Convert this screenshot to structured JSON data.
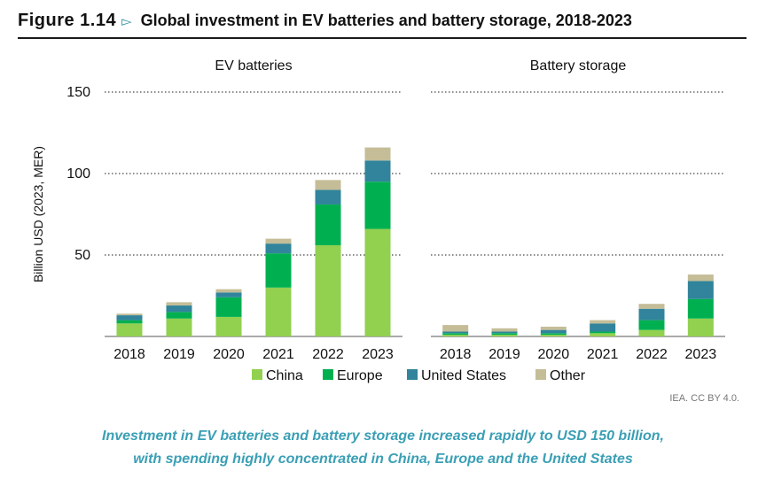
{
  "figure": {
    "number": "Figure 1.14",
    "arrow_icon": "triangle-right-icon",
    "title": "Global investment in EV batteries and battery storage, 2018-2023"
  },
  "source": "IEA. CC BY 4.0.",
  "caption": {
    "line1": "Investment in EV batteries and battery storage increased rapidly to USD 150 billion,",
    "line2": "with spending highly concentrated in China, Europe and the United States"
  },
  "colors": {
    "China": "#92d050",
    "Europe": "#00b050",
    "United States": "#31849b",
    "Other": "#c4bd97",
    "accent": "#3a9fb5"
  },
  "chart_data": {
    "type": "bar",
    "stacked": true,
    "ylabel": "Billion USD (2023, MER)",
    "ylim": [
      0,
      150
    ],
    "yticks": [
      "50",
      "100",
      "150"
    ],
    "grid": true,
    "legend_placement": "bottom",
    "legend": [
      "China",
      "Europe",
      "United States",
      "Other"
    ],
    "panels": [
      {
        "title": "EV batteries",
        "categories": [
          "2018",
          "2019",
          "2020",
          "2021",
          "2022",
          "2023"
        ],
        "series": [
          {
            "name": "China",
            "values": [
              8,
              11,
              12,
              30,
              56,
              66
            ]
          },
          {
            "name": "Europe",
            "values": [
              2,
              4,
              12,
              21,
              25,
              29
            ]
          },
          {
            "name": "United States",
            "values": [
              3,
              4,
              3,
              6,
              9,
              13
            ]
          },
          {
            "name": "Other",
            "values": [
              1,
              2,
              2,
              3,
              6,
              8
            ]
          }
        ]
      },
      {
        "title": "Battery storage",
        "categories": [
          "2018",
          "2019",
          "2020",
          "2021",
          "2022",
          "2023"
        ],
        "series": [
          {
            "name": "China",
            "values": [
              1,
              1,
              1,
              2,
              4,
              11
            ]
          },
          {
            "name": "Europe",
            "values": [
              1,
              1,
              1,
              1,
              6,
              12
            ]
          },
          {
            "name": "United States",
            "values": [
              1,
              1,
              2,
              5,
              7,
              11
            ]
          },
          {
            "name": "Other",
            "values": [
              4,
              2,
              2,
              2,
              3,
              4
            ]
          }
        ]
      }
    ]
  }
}
